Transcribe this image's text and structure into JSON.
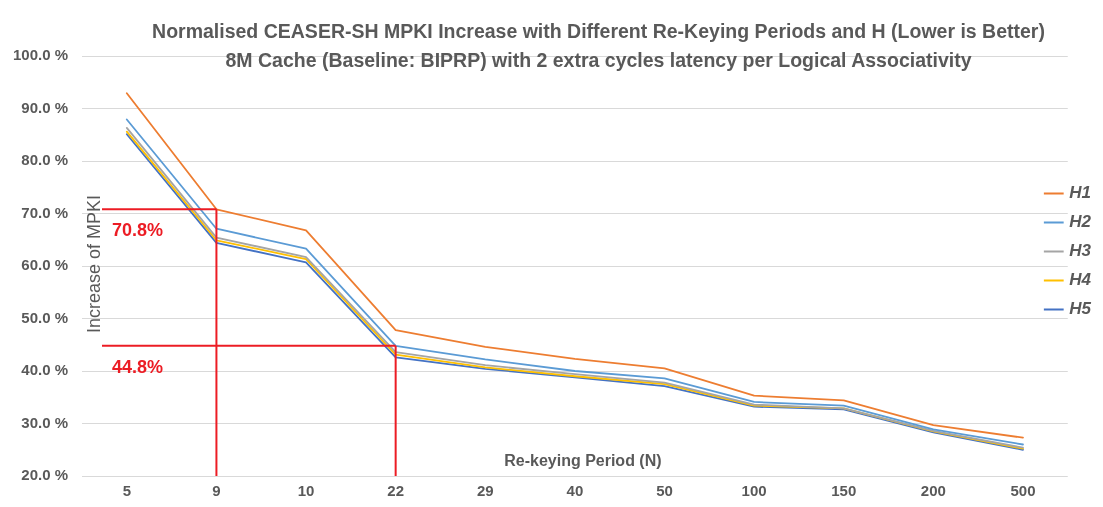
{
  "chart_data": {
    "type": "line",
    "title": "Normalised CEASER-SH MPKI Increase with Different Re-Keying Periods and H (Lower is Better)",
    "subtitle": "8M Cache (Baseline: BIPRP) with 2 extra cycles latency per Logical Associativity",
    "xlabel": "Re-keying Period (N)",
    "ylabel": "Increase of MPKI",
    "categories": [
      "5",
      "9",
      "10",
      "22",
      "29",
      "40",
      "50",
      "100",
      "150",
      "200",
      "500"
    ],
    "series": [
      {
        "name": "H1",
        "color": "#ed7d31",
        "values": [
          92.9,
          70.8,
          66.8,
          47.8,
          44.6,
          42.3,
          40.5,
          35.3,
          34.4,
          29.7,
          27.3
        ]
      },
      {
        "name": "H2",
        "color": "#5b9bd5",
        "values": [
          87.9,
          67.1,
          63.3,
          44.8,
          42.2,
          40.0,
          38.6,
          34.1,
          33.4,
          28.9,
          26.0
        ]
      },
      {
        "name": "H3",
        "color": "#a5a5a5",
        "values": [
          86.3,
          65.4,
          61.7,
          43.6,
          41.1,
          39.4,
          37.8,
          33.6,
          32.9,
          28.6,
          25.4
        ]
      },
      {
        "name": "H4",
        "color": "#ffc000",
        "values": [
          85.6,
          64.9,
          61.3,
          43.1,
          40.7,
          39.0,
          37.5,
          33.4,
          32.9,
          28.5,
          25.2
        ]
      },
      {
        "name": "H5",
        "color": "#4472c4",
        "values": [
          85.1,
          64.4,
          60.7,
          42.6,
          40.4,
          38.8,
          37.1,
          33.2,
          32.7,
          28.3,
          25.0
        ]
      }
    ],
    "ylim": [
      20,
      100
    ],
    "yticks": [
      {
        "value": 20,
        "label": "20.0 %"
      },
      {
        "value": 30,
        "label": "30.0 %"
      },
      {
        "value": 40,
        "label": "40.0 %"
      },
      {
        "value": 50,
        "label": "50.0 %"
      },
      {
        "value": 60,
        "label": "60.0 %"
      },
      {
        "value": 70,
        "label": "70.0 %"
      },
      {
        "value": 80,
        "label": "80.0 %"
      },
      {
        "value": 90,
        "label": "90.0 %"
      },
      {
        "value": 100,
        "label": "100.0 %"
      }
    ],
    "grid": "y",
    "legend": "right",
    "marker": "none",
    "ref_lines": [
      {
        "axis": "y",
        "value": 70.8,
        "label": "70.8%",
        "color": "#ec1c24"
      },
      {
        "axis": "x",
        "value": "9",
        "color": "#ec1c24"
      },
      {
        "axis": "y",
        "value": 44.8,
        "label": "44.8%",
        "color": "#ec1c24"
      },
      {
        "axis": "x",
        "value": "22",
        "color": "#ec1c24"
      }
    ]
  }
}
